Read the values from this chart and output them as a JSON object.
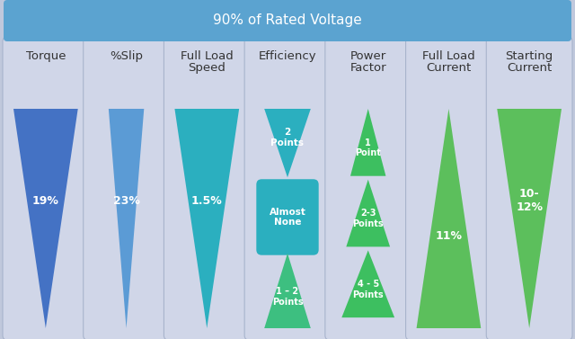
{
  "title": "90% of Rated Voltage",
  "title_bg": "#5BA3D0",
  "title_color": "white",
  "bg_color": "#C0C8DC",
  "card_bg": "#D0D6E8",
  "card_border": "#A8B4CC",
  "fig_w": 6.4,
  "fig_h": 3.77,
  "dpi": 100,
  "columns": [
    {
      "header": "Torque",
      "header2": "",
      "shape": "triangle_down",
      "color": "#4472C4",
      "label": "19%",
      "label_color": "white",
      "narrow": false
    },
    {
      "header": "%Slip",
      "header2": "",
      "shape": "triangle_down",
      "color": "#5B9BD5",
      "label": "23%",
      "label_color": "white",
      "narrow": true
    },
    {
      "header": "Full Load",
      "header2": "Speed",
      "shape": "triangle_down",
      "color": "#2BAFBF",
      "label": "1.5%",
      "label_color": "white",
      "narrow": false
    },
    {
      "header": "Efficiency",
      "header2": "",
      "shape": "multi_efficiency",
      "shapes": [
        {
          "type": "triangle_down",
          "color": "#2BAFBF",
          "label": "2\nPoints"
        },
        {
          "type": "rounded_rect",
          "color": "#2BAFBF",
          "label": "Almost\nNone"
        },
        {
          "type": "triangle_up",
          "color": "#3DBF80",
          "label": "1 – 2\nPoints"
        }
      ]
    },
    {
      "header": "Power",
      "header2": "Factor",
      "shape": "multi_power",
      "shapes": [
        {
          "type": "triangle_up",
          "color": "#3DBF60",
          "label": "1\nPoint"
        },
        {
          "type": "triangle_up",
          "color": "#3DBF60",
          "label": "2-3\nPoints"
        },
        {
          "type": "triangle_up",
          "color": "#3DBF60",
          "label": "4 - 5\nPoints"
        }
      ]
    },
    {
      "header": "Full Load",
      "header2": "Current",
      "shape": "triangle_up",
      "color": "#5CBF5C",
      "label": "11%",
      "label_color": "white",
      "narrow": false
    },
    {
      "header": "Starting",
      "header2": "Current",
      "shape": "triangle_down",
      "color": "#5CBF5C",
      "label": "10-\n12%",
      "label_color": "white",
      "narrow": false
    }
  ]
}
